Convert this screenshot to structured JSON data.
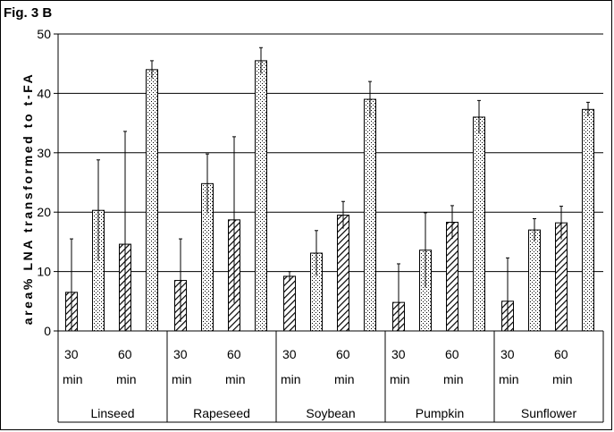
{
  "figure_label": "Fig. 3 B",
  "chart_data": {
    "type": "bar",
    "title": "",
    "ylabel": "area% LNA transformed to t-FA",
    "xlabel": "",
    "ylim": [
      0,
      50
    ],
    "yticks": [
      0,
      10,
      20,
      30,
      40,
      50
    ],
    "grid": true,
    "legend": "none",
    "categories": [
      "Linseed",
      "Rapeseed",
      "Soybean",
      "Pumpkin",
      "Sunflower"
    ],
    "time_labels": [
      {
        "value": "30",
        "unit": "min"
      },
      {
        "value": "60",
        "unit": "min"
      }
    ],
    "bars_per_group": [
      {
        "time": "30 min",
        "pattern": "hatched"
      },
      {
        "time": "30 min",
        "pattern": "dotted"
      },
      {
        "time": "60 min",
        "pattern": "hatched"
      },
      {
        "time": "60 min",
        "pattern": "dotted"
      }
    ],
    "values": [
      [
        6.5,
        20.3,
        14.6,
        44.0
      ],
      [
        8.5,
        24.8,
        18.7,
        45.5
      ],
      [
        9.2,
        13.1,
        19.5,
        39.0
      ],
      [
        4.8,
        13.6,
        18.3,
        36.0
      ],
      [
        5.0,
        17.0,
        18.2,
        37.3
      ]
    ],
    "errors": [
      [
        9.0,
        8.5,
        19.0,
        1.5
      ],
      [
        7.0,
        5.0,
        14.0,
        2.2
      ],
      [
        0.8,
        3.8,
        2.3,
        3.0
      ],
      [
        6.5,
        6.3,
        2.8,
        2.8
      ],
      [
        7.3,
        1.9,
        2.8,
        1.2
      ]
    ],
    "colors": {
      "bar_fill": "#ffffff",
      "pattern": "#000000",
      "grid": "#000000"
    }
  }
}
